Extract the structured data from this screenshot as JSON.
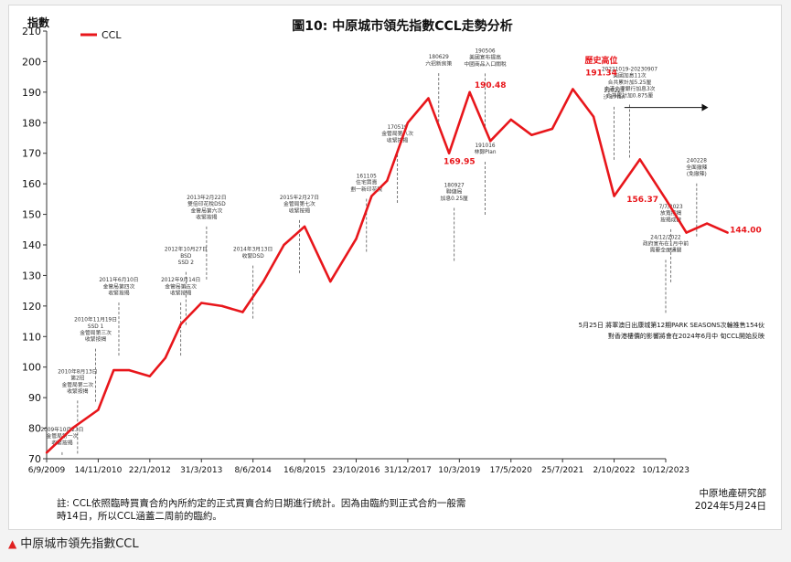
{
  "caption": {
    "icon": "triangle-up-icon",
    "text": "中原城市領先指數CCL"
  },
  "chart_data": {
    "type": "line",
    "title": "圖10: 中原城市領先指數CCL走勢分析",
    "ylabel": "指數",
    "ylim": [
      70,
      210
    ],
    "yticks": [
      70,
      80,
      90,
      100,
      110,
      120,
      130,
      140,
      150,
      160,
      170,
      180,
      190,
      200,
      210
    ],
    "xtick_labels": [
      "6/9/2009",
      "14/11/2010",
      "22/1/2012",
      "31/3/2013",
      "8/6/2014",
      "16/8/2015",
      "23/10/2016",
      "31/12/2017",
      "10/3/2019",
      "17/5/2020",
      "25/7/2021",
      "2/10/2022",
      "10/12/2023"
    ],
    "legend": {
      "position": "top-left",
      "label": "CCL"
    },
    "line_color": "#e8161b",
    "series": [
      {
        "name": "CCL",
        "x": [
          0,
          0.5,
          1,
          1.3,
          1.6,
          2,
          2.3,
          2.6,
          3,
          3.4,
          3.8,
          4.2,
          4.6,
          5,
          5.5,
          6,
          6.3,
          6.6,
          7,
          7.4,
          7.8,
          8.2,
          8.6,
          9,
          9.4,
          9.8,
          10.2,
          10.6,
          11,
          11.5,
          12,
          12.4,
          12.8,
          13.2
        ],
        "y": [
          72,
          80,
          86,
          99,
          99,
          97,
          103,
          114,
          121,
          120,
          118,
          128,
          140,
          146,
          128,
          142,
          156,
          161,
          180,
          188,
          170,
          190,
          174,
          181,
          176,
          178,
          191,
          182,
          156,
          168,
          155,
          144,
          147,
          144
        ]
      }
    ],
    "annotations": [
      {
        "lines": [
          "2009年10月23日",
          "金管局第一次",
          "收緊按揭"
        ],
        "x": 0.3,
        "y": 79
      },
      {
        "lines": [
          "2010年8月13日",
          "第2招",
          "金管局第二次",
          "收緊按揭"
        ],
        "x": 0.6,
        "y": 98
      },
      {
        "lines": [
          "2010年11月19日",
          "SSD 1",
          "金管局第三次",
          "收緊按揭"
        ],
        "x": 0.95,
        "y": 115
      },
      {
        "lines": [
          "2011年6月10日",
          "金管局第四次",
          "收緊按揭"
        ],
        "x": 1.4,
        "y": 128
      },
      {
        "lines": [
          "2012年9月14日",
          "金管局第五次",
          "收緊按揭"
        ],
        "x": 2.6,
        "y": 128
      },
      {
        "lines": [
          "2012年10月27日",
          "BSD",
          "SSD 2"
        ],
        "x": 2.7,
        "y": 138
      },
      {
        "lines": [
          "2013年2月22日",
          "雙倍印花稅DSD",
          "金管局第六次",
          "收緊按揭"
        ],
        "x": 3.1,
        "y": 155
      },
      {
        "lines": [
          "2014年3月13日",
          "收緊DSD"
        ],
        "x": 4.0,
        "y": 138
      },
      {
        "lines": [
          "2015年2月27日",
          "金管局第七次",
          "收緊按揭"
        ],
        "x": 4.9,
        "y": 155
      },
      {
        "lines": [
          "161105",
          "住宅買賣",
          "劃一新印花稅"
        ],
        "x": 6.2,
        "y": 162
      },
      {
        "lines": [
          "170519",
          "金管局第八次",
          "收緊按揭"
        ],
        "x": 6.8,
        "y": 178
      },
      {
        "lines": [
          "180629",
          "六招新房策"
        ],
        "x": 7.6,
        "y": 201
      },
      {
        "lines": [
          "190506",
          "美國宣布提高",
          "中國商品入口關稅"
        ],
        "x": 8.5,
        "y": 203
      },
      {
        "lines": [
          "180927",
          "聯儲局",
          "加息0.25厘"
        ],
        "x": 7.9,
        "y": 159
      },
      {
        "lines": [
          "191016",
          "林鄭Plan"
        ],
        "x": 8.5,
        "y": 172
      },
      {
        "lines": [
          "220223",
          "沙士Plan"
        ],
        "x": 11.0,
        "y": 190
      },
      {
        "lines": [
          "20221019-20230907",
          "美國加息11次",
          "合共累計加5.25厘",
          "本港主要銀行加息3次",
          "合共累計加0.875厘"
        ],
        "x": 11.3,
        "y": 197
      },
      {
        "lines": [
          "24/12/2022",
          "政府宣布在1月中前",
          "需要全面通關"
        ],
        "x": 12.0,
        "y": 142
      },
      {
        "lines": [
          "7/7/2023",
          "放寬按揭",
          "按揭成數"
        ],
        "x": 12.1,
        "y": 152
      },
      {
        "lines": [
          "240228",
          "全面撤辣",
          "(免撤辣)"
        ],
        "x": 12.6,
        "y": 167
      }
    ],
    "data_labels": [
      {
        "text": "歷史高位",
        "x": 10.75,
        "y": 199.5,
        "color": "#e8161b"
      },
      {
        "text": "191.34",
        "x": 10.75,
        "y": 195.5,
        "color": "#e8161b"
      },
      {
        "text": "190.48",
        "x": 8.6,
        "y": 191.5,
        "color": "#e8161b"
      },
      {
        "text": "169.95",
        "x": 8.0,
        "y": 166.5,
        "color": "#e8161b"
      },
      {
        "text": "156.37",
        "x": 11.55,
        "y": 154,
        "color": "#e8161b"
      },
      {
        "text": "144.00",
        "x": 13.55,
        "y": 144,
        "color": "#e8161b"
      }
    ],
    "note_right": [
      "5月25日 將軍澳日出康城第12期PARK SEASONS次輪推售154伙",
      "對香港樓價的影響將會在2024年6月中 旬CCL開始反映"
    ],
    "footnote": [
      "註: CCL依照臨時買賣合約內所約定的正式買賣合約日期進行統計。因為由臨約到正式合約一般需",
      "時14日，所以CCL涵蓋二周前的臨約。"
    ],
    "source": [
      "中原地產研究部",
      "2024年5月24日"
    ]
  }
}
